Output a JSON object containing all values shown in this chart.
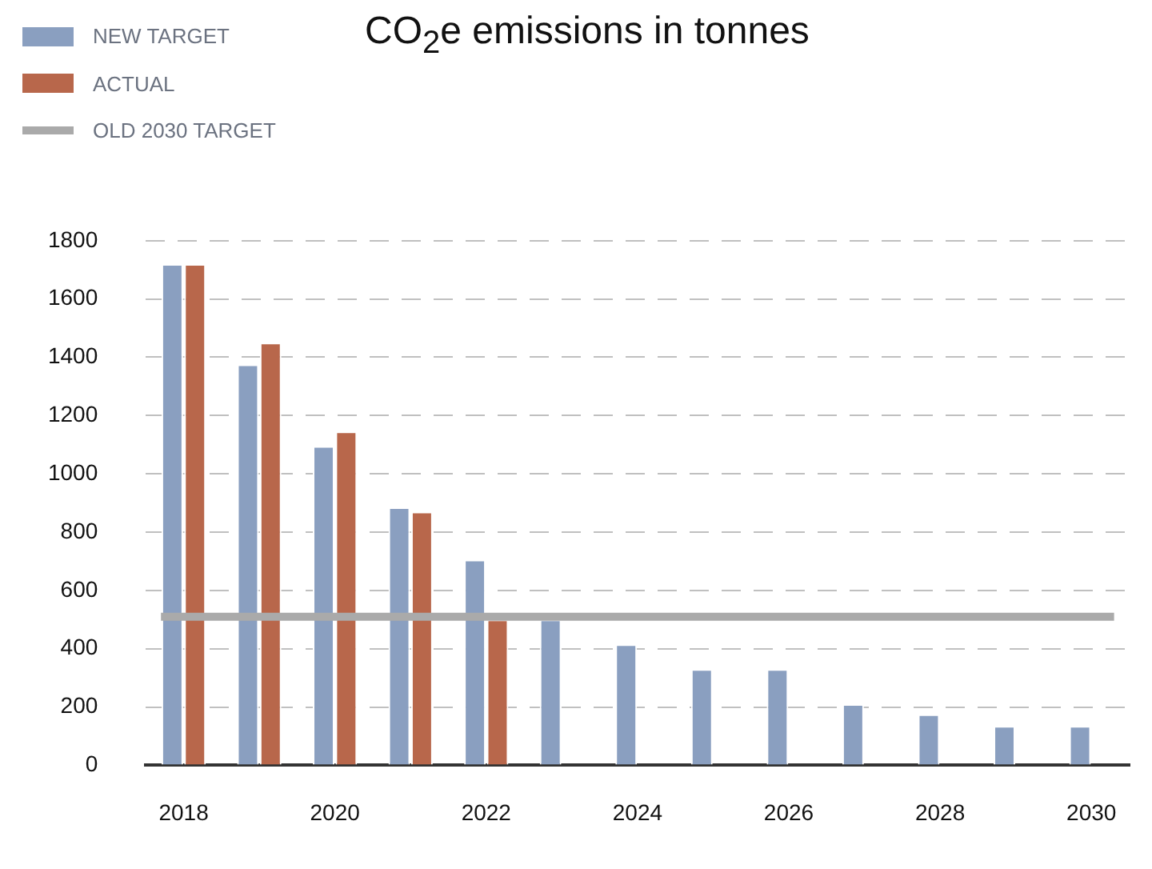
{
  "chart_data": {
    "type": "bar",
    "title": "CO$_{2}$e emissions in tonnes",
    "categories": [
      "2018",
      null,
      "2020",
      null,
      "2022",
      null,
      "2024",
      null,
      "2026",
      null,
      "2028",
      null,
      "2030"
    ],
    "series": [
      {
        "name": "NEW TARGET",
        "color": "#8a9fc0",
        "values": [
          1720,
          1375,
          1095,
          885,
          705,
          500,
          415,
          330,
          330,
          210,
          175,
          135,
          135
        ]
      },
      {
        "name": "ACTUAL",
        "color": "#b8674b",
        "values": [
          1720,
          1450,
          1145,
          870,
          500,
          null,
          null,
          null,
          null,
          null,
          null,
          null,
          null
        ]
      }
    ],
    "ylim": [
      0,
      1800
    ],
    "yticks": [
      0,
      200,
      400,
      600,
      800,
      1000,
      1200,
      1400,
      1600,
      1800
    ],
    "ref_lines": [
      {
        "axis": "y",
        "value": 510,
        "label": "OLD 2030 TARGET",
        "color": "#aaaaaa"
      }
    ],
    "grid": "y",
    "legend": "top left"
  }
}
